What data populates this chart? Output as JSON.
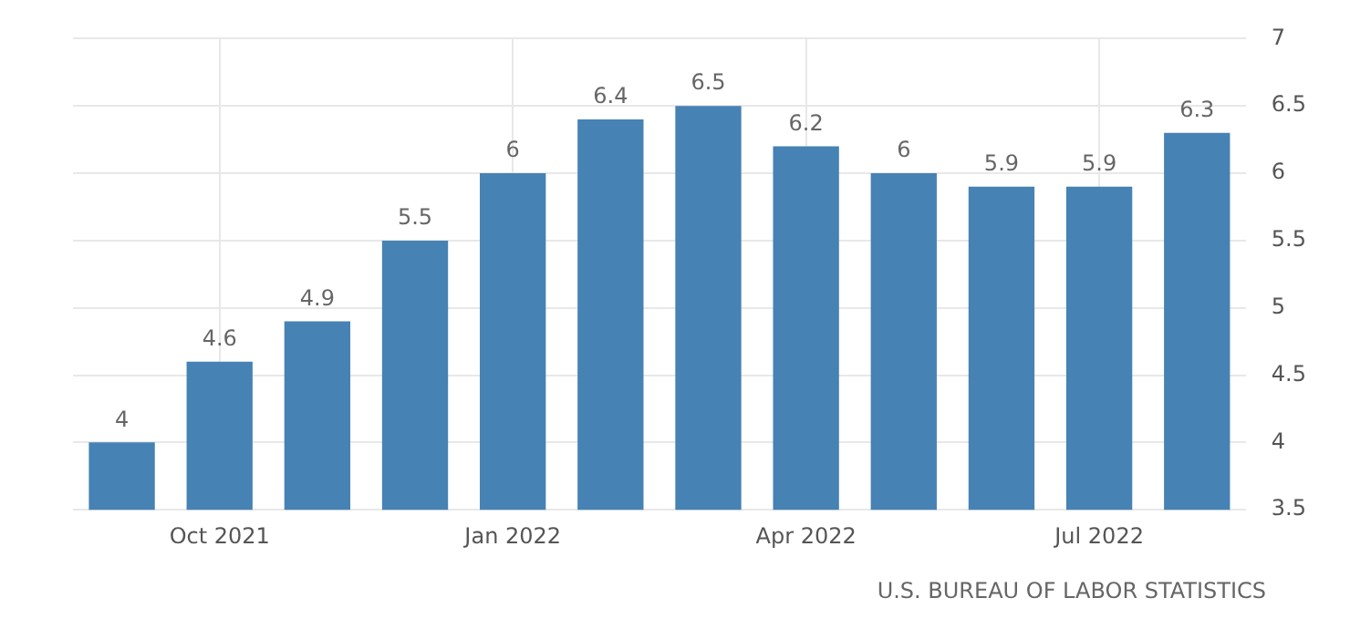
{
  "chart_data": {
    "type": "bar",
    "categories": [
      null,
      "Oct 2021",
      null,
      null,
      "Jan 2022",
      null,
      null,
      "Apr 2022",
      null,
      null,
      "Jul 2022",
      null
    ],
    "values": [
      4,
      4.6,
      4.9,
      5.5,
      6,
      6.4,
      6.5,
      6.2,
      6,
      5.9,
      5.9,
      6.3
    ],
    "color": "#4682b4",
    "ylim": [
      3.5,
      7
    ],
    "yticks": [
      3.5,
      4,
      4.5,
      5,
      5.5,
      6,
      6.5,
      7
    ],
    "grid": true,
    "data_labels": true,
    "annotations": [
      "U.S. BUREAU OF LABOR STATISTICS"
    ]
  }
}
